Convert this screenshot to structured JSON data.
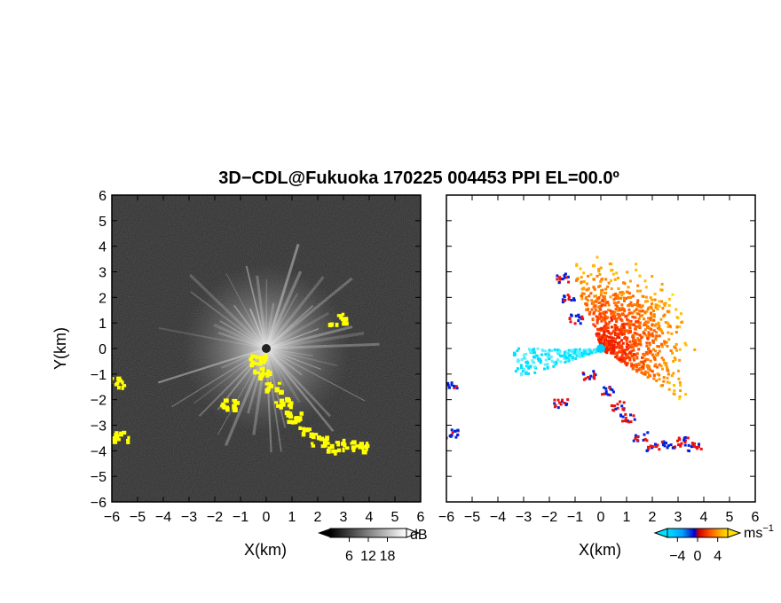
{
  "chart_data": {
    "title": "3D−CDL@Fukuoka 170225 004453 PPI EL=00.0º",
    "panels": [
      {
        "type": "heatmap",
        "quantity": "reflectivity",
        "xlabel": "X(km)",
        "ylabel": "Y(km)",
        "xlim": [
          -6,
          6
        ],
        "ylim": [
          -6,
          6
        ],
        "xticks": [
          "−6",
          "−5",
          "−4",
          "−3",
          "−2",
          "−1",
          "0",
          "1",
          "2",
          "3",
          "4",
          "5",
          "6"
        ],
        "yticks": [
          "−6",
          "−5",
          "−4",
          "−3",
          "−2",
          "−1",
          "0",
          "1",
          "2",
          "3",
          "4",
          "5",
          "6"
        ],
        "background": "#2a2a2a",
        "highlight_color": "#ffff00",
        "highlight_regions": [
          {
            "x": -0.4,
            "y": -0.4
          },
          {
            "x": -0.2,
            "y": -0.9
          },
          {
            "x": 0.2,
            "y": -1.5
          },
          {
            "x": 0.6,
            "y": -2.1
          },
          {
            "x": 1.0,
            "y": -2.6
          },
          {
            "x": 1.5,
            "y": -3.2
          },
          {
            "x": 2.0,
            "y": -3.6
          },
          {
            "x": 2.6,
            "y": -3.8
          },
          {
            "x": 3.2,
            "y": -3.7
          },
          {
            "x": 3.6,
            "y": -3.8
          },
          {
            "x": -5.9,
            "y": -1.3
          },
          {
            "x": -5.7,
            "y": -3.4
          },
          {
            "x": 2.7,
            "y": 1.2
          },
          {
            "x": -1.5,
            "y": -2.1
          }
        ],
        "colorbar": {
          "unit": "dB",
          "ticks": [
            "6",
            "12",
            "18"
          ],
          "range": [
            0,
            24
          ]
        }
      },
      {
        "type": "heatmap",
        "quantity": "radial velocity",
        "xlabel": "X(km)",
        "xlim": [
          -6,
          6
        ],
        "ylim": [
          -6,
          6
        ],
        "xticks": [
          "−6",
          "−5",
          "−4",
          "−3",
          "−2",
          "−1",
          "0",
          "1",
          "2",
          "3",
          "4",
          "5",
          "6"
        ],
        "background": "#ffffff",
        "colorbar": {
          "unit": "ms",
          "unit_exp": "−1",
          "ticks": [
            "−4",
            "0",
            "4"
          ],
          "range": [
            -6,
            6
          ]
        }
      }
    ]
  }
}
